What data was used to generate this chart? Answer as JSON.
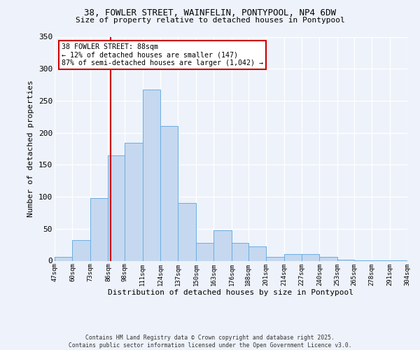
{
  "title1": "38, FOWLER STREET, WAINFELIN, PONTYPOOL, NP4 6DW",
  "title2": "Size of property relative to detached houses in Pontypool",
  "xlabel": "Distribution of detached houses by size in Pontypool",
  "ylabel": "Number of detached properties",
  "bar_color": "#c5d8f0",
  "bar_edge_color": "#6aaee0",
  "bin_edges": [
    47,
    60,
    73,
    86,
    98,
    111,
    124,
    137,
    150,
    163,
    176,
    188,
    201,
    214,
    227,
    240,
    253,
    265,
    278,
    291,
    304
  ],
  "bar_heights": [
    6,
    32,
    98,
    165,
    184,
    267,
    211,
    90,
    28,
    48,
    28,
    22,
    6,
    10,
    10,
    6,
    2,
    1,
    1,
    1
  ],
  "tick_labels": [
    "47sqm",
    "60sqm",
    "73sqm",
    "86sqm",
    "98sqm",
    "111sqm",
    "124sqm",
    "137sqm",
    "150sqm",
    "163sqm",
    "176sqm",
    "188sqm",
    "201sqm",
    "214sqm",
    "227sqm",
    "240sqm",
    "253sqm",
    "265sqm",
    "278sqm",
    "291sqm",
    "304sqm"
  ],
  "vline_x": 88,
  "vline_color": "#cc0000",
  "ylim": [
    0,
    350
  ],
  "yticks": [
    0,
    50,
    100,
    150,
    200,
    250,
    300,
    350
  ],
  "annotation_line1": "38 FOWLER STREET: 88sqm",
  "annotation_line2": "← 12% of detached houses are smaller (147)",
  "annotation_line3": "87% of semi-detached houses are larger (1,042) →",
  "annotation_box_color": "#ffffff",
  "annotation_box_edge": "#cc0000",
  "footer_line1": "Contains HM Land Registry data © Crown copyright and database right 2025.",
  "footer_line2": "Contains public sector information licensed under the Open Government Licence v3.0.",
  "background_color": "#eef2fa"
}
